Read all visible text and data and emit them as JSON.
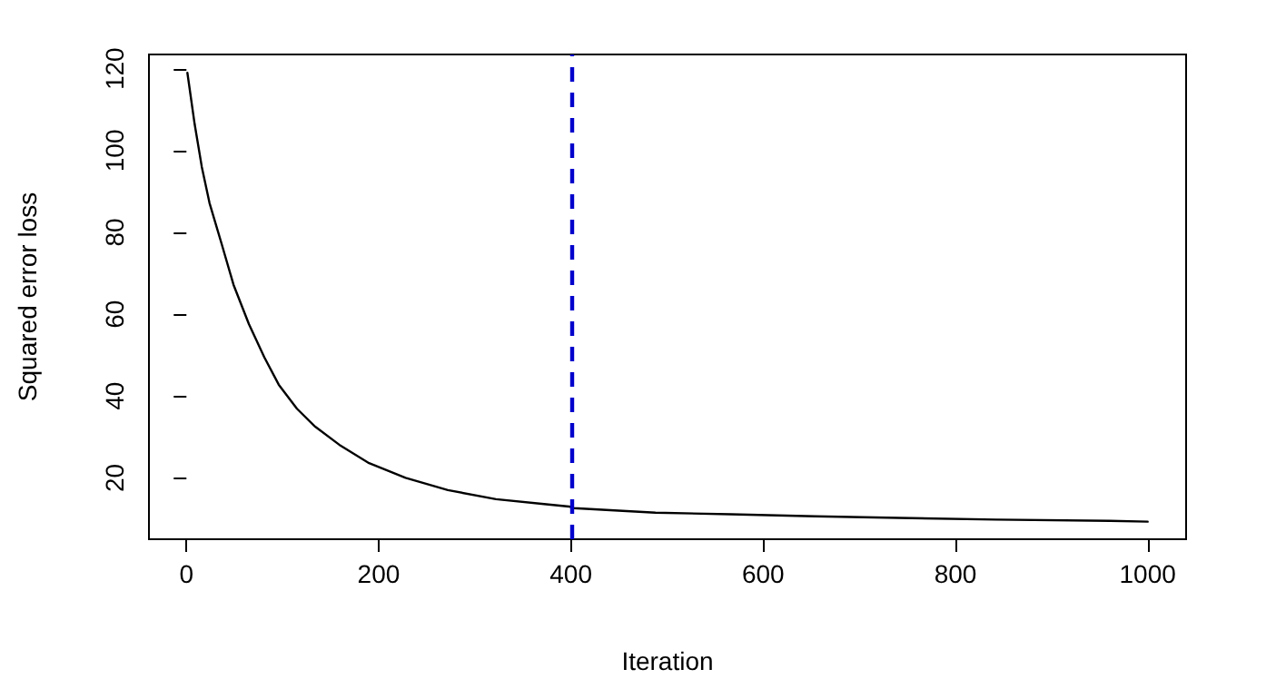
{
  "chart_data": {
    "type": "line",
    "xlabel": "Iteration",
    "ylabel": "Squared error loss",
    "x": [
      1,
      8.6,
      16,
      24,
      37,
      49,
      65,
      81,
      96,
      115,
      134,
      159,
      190,
      228,
      272,
      322,
      372,
      398,
      403,
      441,
      488,
      566,
      654,
      741,
      842,
      961,
      1000
    ],
    "series": [
      {
        "color": "#000000",
        "values": [
          119,
          106.4,
          96,
          87.2,
          76.9,
          67.2,
          57.6,
          49.5,
          42.8,
          36.9,
          32.5,
          28.1,
          23.6,
          20,
          17,
          14.8,
          13.6,
          13,
          12.6,
          12.1,
          11.5,
          11.1,
          10.6,
          10.2,
          9.8,
          9.5,
          9.3
        ]
      }
    ],
    "xlim": [
      -39,
      1040
    ],
    "xticks": [
      0,
      200,
      400,
      600,
      800,
      1000
    ],
    "ylim": [
      5,
      123.5
    ],
    "yticks": [
      20,
      40,
      60,
      80,
      100,
      120
    ],
    "grid": false,
    "marker": "none",
    "line_style": "solid",
    "ref_lines": [
      {
        "axis": "x",
        "value": 400,
        "color": "#0000cc",
        "line_style": "dashed"
      }
    ]
  }
}
